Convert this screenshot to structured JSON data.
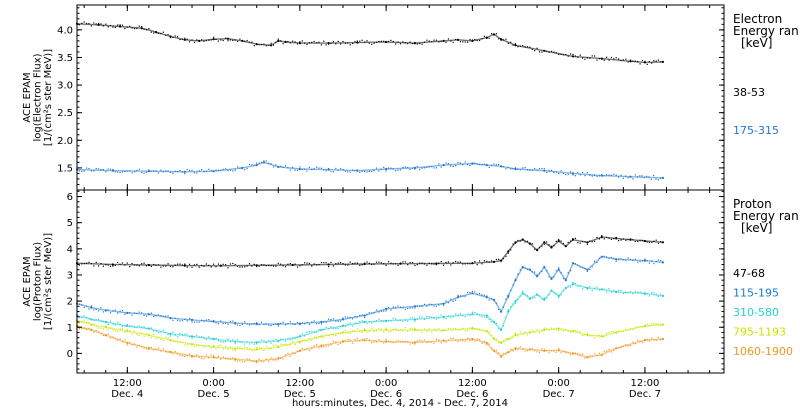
{
  "chart_data": {
    "type": "scatter",
    "x_axis": {
      "label": "hours:minutes, Dec.  4, 2014 - Dec.  7, 2014",
      "range_hours_from_dec4_0000": [
        5,
        95
      ],
      "ticks": [
        {
          "hour": 12,
          "time": "12:00",
          "date": "Dec. 4"
        },
        {
          "hour": 24,
          "time": "0:00",
          "date": "Dec. 5"
        },
        {
          "hour": 36,
          "time": "12:00",
          "date": "Dec. 5"
        },
        {
          "hour": 48,
          "time": "0:00",
          "date": "Dec. 6"
        },
        {
          "hour": 60,
          "time": "12:00",
          "date": "Dec. 6"
        },
        {
          "hour": 72,
          "time": "0:00",
          "date": "Dec. 7"
        },
        {
          "hour": 84,
          "time": "12:00",
          "date": "Dec. 7"
        }
      ]
    },
    "panels": [
      {
        "name": "electron",
        "ylabel_lines": [
          "ACE EPAM",
          "log(Electron Flux)",
          "[1/(cm²s ster MeV)]"
        ],
        "ylim": [
          1.1,
          4.45
        ],
        "yticks": [
          1.5,
          2.0,
          2.5,
          3.0,
          3.5,
          4.0
        ],
        "ytick_labels": [
          "1.5",
          "2.0",
          "2.5",
          "3.0",
          "3.5",
          "4.0"
        ],
        "legend_title_lines": [
          "Electron",
          "Energy ran",
          "[keV]"
        ],
        "series": [
          {
            "name": "38-53",
            "color": "#000000",
            "points": [
              [
                5,
                4.11
              ],
              [
                8,
                4.09
              ],
              [
                11,
                4.06
              ],
              [
                14,
                4.03
              ],
              [
                16,
                3.96
              ],
              [
                18,
                3.88
              ],
              [
                20,
                3.82
              ],
              [
                22,
                3.8
              ],
              [
                24,
                3.83
              ],
              [
                26,
                3.84
              ],
              [
                28,
                3.8
              ],
              [
                30,
                3.74
              ],
              [
                32,
                3.72
              ],
              [
                33,
                3.8
              ],
              [
                34,
                3.78
              ],
              [
                36,
                3.76
              ],
              [
                40,
                3.76
              ],
              [
                44,
                3.77
              ],
              [
                48,
                3.78
              ],
              [
                52,
                3.76
              ],
              [
                56,
                3.8
              ],
              [
                58,
                3.82
              ],
              [
                60,
                3.8
              ],
              [
                62,
                3.86
              ],
              [
                63,
                3.92
              ],
              [
                64,
                3.83
              ],
              [
                66,
                3.72
              ],
              [
                70,
                3.62
              ],
              [
                74,
                3.52
              ],
              [
                78,
                3.48
              ],
              [
                82,
                3.43
              ],
              [
                84,
                3.41
              ],
              [
                86.5,
                3.42
              ]
            ]
          },
          {
            "name": "175-315",
            "color": "#1e78d2",
            "points": [
              [
                5,
                1.47
              ],
              [
                10,
                1.45
              ],
              [
                15,
                1.44
              ],
              [
                20,
                1.43
              ],
              [
                24,
                1.44
              ],
              [
                28,
                1.5
              ],
              [
                30,
                1.55
              ],
              [
                31,
                1.6
              ],
              [
                33,
                1.52
              ],
              [
                36,
                1.48
              ],
              [
                40,
                1.47
              ],
              [
                44,
                1.45
              ],
              [
                48,
                1.48
              ],
              [
                52,
                1.5
              ],
              [
                56,
                1.55
              ],
              [
                60,
                1.58
              ],
              [
                62,
                1.55
              ],
              [
                64,
                1.53
              ],
              [
                66,
                1.48
              ],
              [
                70,
                1.45
              ],
              [
                74,
                1.4
              ],
              [
                78,
                1.36
              ],
              [
                82,
                1.34
              ],
              [
                86.5,
                1.32
              ]
            ]
          }
        ]
      },
      {
        "name": "proton",
        "ylabel_lines": [
          "ACE EPAM",
          "log(Proton Flux)",
          "[1/(cm²s ster MeV)]"
        ],
        "ylim": [
          -0.75,
          6.25
        ],
        "yticks": [
          0,
          1,
          2,
          3,
          4,
          5,
          6
        ],
        "ytick_labels": [
          "0",
          "1",
          "2",
          "3",
          "4",
          "5",
          "6"
        ],
        "legend_title_lines": [
          "Proton",
          "Energy ran",
          "[keV]"
        ],
        "series": [
          {
            "name": "47-68",
            "color": "#000000",
            "points": [
              [
                5,
                3.45
              ],
              [
                10,
                3.4
              ],
              [
                15,
                3.38
              ],
              [
                20,
                3.36
              ],
              [
                25,
                3.35
              ],
              [
                30,
                3.37
              ],
              [
                35,
                3.38
              ],
              [
                40,
                3.4
              ],
              [
                45,
                3.42
              ],
              [
                50,
                3.43
              ],
              [
                55,
                3.44
              ],
              [
                60,
                3.45
              ],
              [
                63,
                3.5
              ],
              [
                64,
                3.55
              ],
              [
                65,
                3.9
              ],
              [
                66,
                4.25
              ],
              [
                67,
                4.35
              ],
              [
                68,
                4.2
              ],
              [
                69,
                3.95
              ],
              [
                70,
                4.25
              ],
              [
                71,
                4.05
              ],
              [
                72,
                4.3
              ],
              [
                73,
                4.1
              ],
              [
                74,
                4.35
              ],
              [
                76,
                4.25
              ],
              [
                78,
                4.45
              ],
              [
                80,
                4.4
              ],
              [
                82,
                4.35
              ],
              [
                84,
                4.3
              ],
              [
                86.5,
                4.25
              ]
            ]
          },
          {
            "name": "115-195",
            "color": "#1e78d2",
            "points": [
              [
                5,
                1.9
              ],
              [
                7,
                1.75
              ],
              [
                9,
                1.65
              ],
              [
                12,
                1.55
              ],
              [
                15,
                1.5
              ],
              [
                18,
                1.35
              ],
              [
                21,
                1.28
              ],
              [
                24,
                1.22
              ],
              [
                27,
                1.16
              ],
              [
                30,
                1.12
              ],
              [
                33,
                1.12
              ],
              [
                36,
                1.14
              ],
              [
                39,
                1.2
              ],
              [
                42,
                1.3
              ],
              [
                45,
                1.45
              ],
              [
                48,
                1.7
              ],
              [
                52,
                1.8
              ],
              [
                56,
                1.9
              ],
              [
                58,
                2.15
              ],
              [
                60,
                2.3
              ],
              [
                62,
                2.15
              ],
              [
                63,
                2.05
              ],
              [
                64,
                1.6
              ],
              [
                65,
                2.2
              ],
              [
                66,
                2.8
              ],
              [
                67,
                3.3
              ],
              [
                68,
                3.2
              ],
              [
                69,
                2.95
              ],
              [
                70,
                3.3
              ],
              [
                71,
                2.85
              ],
              [
                72,
                3.2
              ],
              [
                73,
                2.8
              ],
              [
                74,
                3.45
              ],
              [
                76,
                3.2
              ],
              [
                78,
                3.7
              ],
              [
                80,
                3.6
              ],
              [
                84,
                3.55
              ],
              [
                86.5,
                3.48
              ]
            ]
          },
          {
            "name": "310-580",
            "color": "#22d2d2",
            "points": [
              [
                5,
                1.45
              ],
              [
                7,
                1.3
              ],
              [
                9,
                1.2
              ],
              [
                12,
                1.05
              ],
              [
                15,
                0.95
              ],
              [
                18,
                0.75
              ],
              [
                21,
                0.65
              ],
              [
                24,
                0.55
              ],
              [
                27,
                0.45
              ],
              [
                30,
                0.42
              ],
              [
                33,
                0.48
              ],
              [
                36,
                0.65
              ],
              [
                39,
                0.9
              ],
              [
                42,
                1.05
              ],
              [
                45,
                1.2
              ],
              [
                48,
                1.25
              ],
              [
                52,
                1.3
              ],
              [
                56,
                1.4
              ],
              [
                60,
                1.5
              ],
              [
                62,
                1.45
              ],
              [
                63,
                1.2
              ],
              [
                64,
                0.9
              ],
              [
                65,
                1.6
              ],
              [
                66,
                2.0
              ],
              [
                67,
                2.3
              ],
              [
                68,
                2.1
              ],
              [
                69,
                2.25
              ],
              [
                70,
                2.05
              ],
              [
                71,
                2.4
              ],
              [
                72,
                2.2
              ],
              [
                73,
                2.5
              ],
              [
                74,
                2.65
              ],
              [
                76,
                2.5
              ],
              [
                78,
                2.45
              ],
              [
                80,
                2.35
              ],
              [
                84,
                2.3
              ],
              [
                86.5,
                2.2
              ]
            ]
          },
          {
            "name": "795-1193",
            "color": "#c8e600",
            "points": [
              [
                5,
                1.25
              ],
              [
                7,
                1.1
              ],
              [
                9,
                1.0
              ],
              [
                12,
                0.85
              ],
              [
                15,
                0.7
              ],
              [
                18,
                0.5
              ],
              [
                21,
                0.35
              ],
              [
                24,
                0.25
              ],
              [
                27,
                0.18
              ],
              [
                30,
                0.15
              ],
              [
                33,
                0.25
              ],
              [
                36,
                0.45
              ],
              [
                39,
                0.65
              ],
              [
                42,
                0.8
              ],
              [
                45,
                0.88
              ],
              [
                48,
                0.9
              ],
              [
                52,
                0.9
              ],
              [
                56,
                0.88
              ],
              [
                60,
                0.95
              ],
              [
                62,
                0.85
              ],
              [
                63,
                0.55
              ],
              [
                64,
                0.4
              ],
              [
                65,
                0.55
              ],
              [
                66,
                0.7
              ],
              [
                68,
                0.8
              ],
              [
                70,
                0.9
              ],
              [
                72,
                0.95
              ],
              [
                74,
                0.85
              ],
              [
                76,
                0.7
              ],
              [
                78,
                0.65
              ],
              [
                80,
                0.8
              ],
              [
                84,
                1.05
              ],
              [
                86.5,
                1.1
              ]
            ]
          },
          {
            "name": "1060-1900",
            "color": "#f0961e",
            "points": [
              [
                5,
                1.05
              ],
              [
                7,
                0.9
              ],
              [
                9,
                0.7
              ],
              [
                12,
                0.4
              ],
              [
                15,
                0.2
              ],
              [
                18,
                0.05
              ],
              [
                21,
                -0.1
              ],
              [
                24,
                -0.15
              ],
              [
                27,
                -0.22
              ],
              [
                30,
                -0.3
              ],
              [
                33,
                -0.2
              ],
              [
                36,
                0.1
              ],
              [
                39,
                0.3
              ],
              [
                42,
                0.45
              ],
              [
                45,
                0.5
              ],
              [
                48,
                0.45
              ],
              [
                52,
                0.42
              ],
              [
                56,
                0.48
              ],
              [
                60,
                0.55
              ],
              [
                62,
                0.4
              ],
              [
                63,
                0.1
              ],
              [
                64,
                -0.1
              ],
              [
                65,
                0.05
              ],
              [
                66,
                0.2
              ],
              [
                68,
                0.15
              ],
              [
                70,
                0.1
              ],
              [
                72,
                0.12
              ],
              [
                74,
                0.0
              ],
              [
                76,
                -0.15
              ],
              [
                78,
                -0.05
              ],
              [
                80,
                0.2
              ],
              [
                84,
                0.5
              ],
              [
                86.5,
                0.55
              ]
            ]
          }
        ]
      }
    ]
  }
}
